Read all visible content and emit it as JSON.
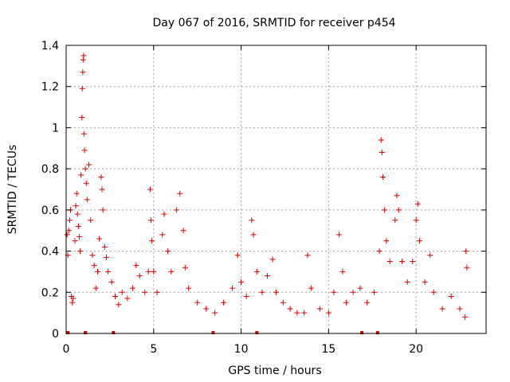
{
  "chart_data": {
    "type": "scatter",
    "title": "Day 067 of 2016, SRMTID for receiver p454",
    "xlabel": "GPS time / hours",
    "ylabel": "SRMTID / TECUs",
    "xlim": [
      0,
      24
    ],
    "ylim": [
      0,
      1.4
    ],
    "x_ticks": [
      0,
      5,
      10,
      15,
      20
    ],
    "x_tick_labels": [
      "0",
      "5",
      "10",
      "15",
      "20"
    ],
    "y_ticks": [
      0,
      0.2,
      0.4,
      0.6,
      0.8,
      1,
      1.2,
      1.4
    ],
    "y_tick_labels": [
      "0",
      "0.2",
      "0.4",
      "0.6",
      "0.8",
      "1",
      "1.2",
      "1.4"
    ],
    "grid": true,
    "marker": "+",
    "series": [
      {
        "name": "SRMTID",
        "color": "#dd0000",
        "description": "Dense scatter of SRMTID values; main peaks listed as points",
        "points": [
          [
            0.05,
            0.48
          ],
          [
            0.1,
            0.38
          ],
          [
            0.15,
            0.5
          ],
          [
            0.2,
            0.55
          ],
          [
            0.25,
            0.6
          ],
          [
            0.3,
            0.18
          ],
          [
            0.35,
            0.15
          ],
          [
            0.4,
            0.17
          ],
          [
            0.5,
            0.45
          ],
          [
            0.55,
            0.62
          ],
          [
            0.6,
            0.68
          ],
          [
            0.65,
            0.58
          ],
          [
            0.7,
            0.52
          ],
          [
            0.75,
            0.47
          ],
          [
            0.8,
            0.4
          ],
          [
            0.85,
            0.77
          ],
          [
            0.9,
            1.05
          ],
          [
            0.92,
            1.19
          ],
          [
            0.95,
            1.27
          ],
          [
            0.97,
            1.33
          ],
          [
            1.0,
            1.35
          ],
          [
            1.02,
            0.97
          ],
          [
            1.05,
            0.89
          ],
          [
            1.1,
            0.8
          ],
          [
            1.15,
            0.73
          ],
          [
            1.2,
            0.65
          ],
          [
            1.3,
            0.82
          ],
          [
            1.4,
            0.55
          ],
          [
            1.5,
            0.38
          ],
          [
            1.6,
            0.33
          ],
          [
            1.7,
            0.22
          ],
          [
            1.8,
            0.3
          ],
          [
            1.9,
            0.46
          ],
          [
            2.0,
            0.76
          ],
          [
            2.05,
            0.7
          ],
          [
            2.1,
            0.6
          ],
          [
            2.2,
            0.42
          ],
          [
            2.3,
            0.37
          ],
          [
            2.4,
            0.3
          ],
          [
            2.6,
            0.25
          ],
          [
            2.8,
            0.18
          ],
          [
            3.0,
            0.14
          ],
          [
            3.2,
            0.2
          ],
          [
            3.5,
            0.17
          ],
          [
            3.8,
            0.22
          ],
          [
            4.0,
            0.33
          ],
          [
            4.2,
            0.28
          ],
          [
            4.5,
            0.2
          ],
          [
            4.7,
            0.3
          ],
          [
            4.8,
            0.7
          ],
          [
            4.85,
            0.55
          ],
          [
            4.9,
            0.45
          ],
          [
            5.0,
            0.3
          ],
          [
            5.2,
            0.2
          ],
          [
            5.5,
            0.48
          ],
          [
            5.6,
            0.58
          ],
          [
            5.8,
            0.4
          ],
          [
            6.0,
            0.3
          ],
          [
            6.3,
            0.6
          ],
          [
            6.5,
            0.68
          ],
          [
            6.7,
            0.5
          ],
          [
            6.8,
            0.32
          ],
          [
            7.0,
            0.22
          ],
          [
            7.5,
            0.15
          ],
          [
            8.0,
            0.12
          ],
          [
            8.5,
            0.1
          ],
          [
            9.0,
            0.15
          ],
          [
            9.5,
            0.22
          ],
          [
            9.8,
            0.38
          ],
          [
            10.0,
            0.25
          ],
          [
            10.3,
            0.18
          ],
          [
            10.6,
            0.55
          ],
          [
            10.7,
            0.48
          ],
          [
            10.9,
            0.3
          ],
          [
            11.2,
            0.2
          ],
          [
            11.5,
            0.28
          ],
          [
            11.8,
            0.36
          ],
          [
            12.0,
            0.2
          ],
          [
            12.4,
            0.15
          ],
          [
            12.8,
            0.12
          ],
          [
            13.2,
            0.1
          ],
          [
            13.6,
            0.1
          ],
          [
            13.8,
            0.38
          ],
          [
            14.0,
            0.22
          ],
          [
            14.5,
            0.12
          ],
          [
            15.0,
            0.1
          ],
          [
            15.3,
            0.2
          ],
          [
            15.6,
            0.48
          ],
          [
            15.8,
            0.3
          ],
          [
            16.0,
            0.15
          ],
          [
            16.4,
            0.2
          ],
          [
            16.8,
            0.22
          ],
          [
            17.2,
            0.15
          ],
          [
            17.6,
            0.2
          ],
          [
            17.9,
            0.4
          ],
          [
            18.0,
            0.94
          ],
          [
            18.05,
            0.88
          ],
          [
            18.1,
            0.76
          ],
          [
            18.2,
            0.6
          ],
          [
            18.3,
            0.45
          ],
          [
            18.5,
            0.35
          ],
          [
            18.8,
            0.55
          ],
          [
            18.9,
            0.67
          ],
          [
            19.0,
            0.6
          ],
          [
            19.2,
            0.35
          ],
          [
            19.5,
            0.25
          ],
          [
            19.8,
            0.35
          ],
          [
            20.0,
            0.55
          ],
          [
            20.1,
            0.63
          ],
          [
            20.2,
            0.45
          ],
          [
            20.5,
            0.25
          ],
          [
            20.8,
            0.38
          ],
          [
            21.0,
            0.2
          ],
          [
            21.5,
            0.12
          ],
          [
            22.0,
            0.18
          ],
          [
            22.5,
            0.12
          ],
          [
            22.8,
            0.08
          ],
          [
            22.85,
            0.4
          ],
          [
            22.9,
            0.32
          ]
        ],
        "zero_points_x": [
          0.1,
          1.1,
          2.7,
          8.4,
          10.9,
          16.9,
          17.8
        ]
      }
    ]
  }
}
